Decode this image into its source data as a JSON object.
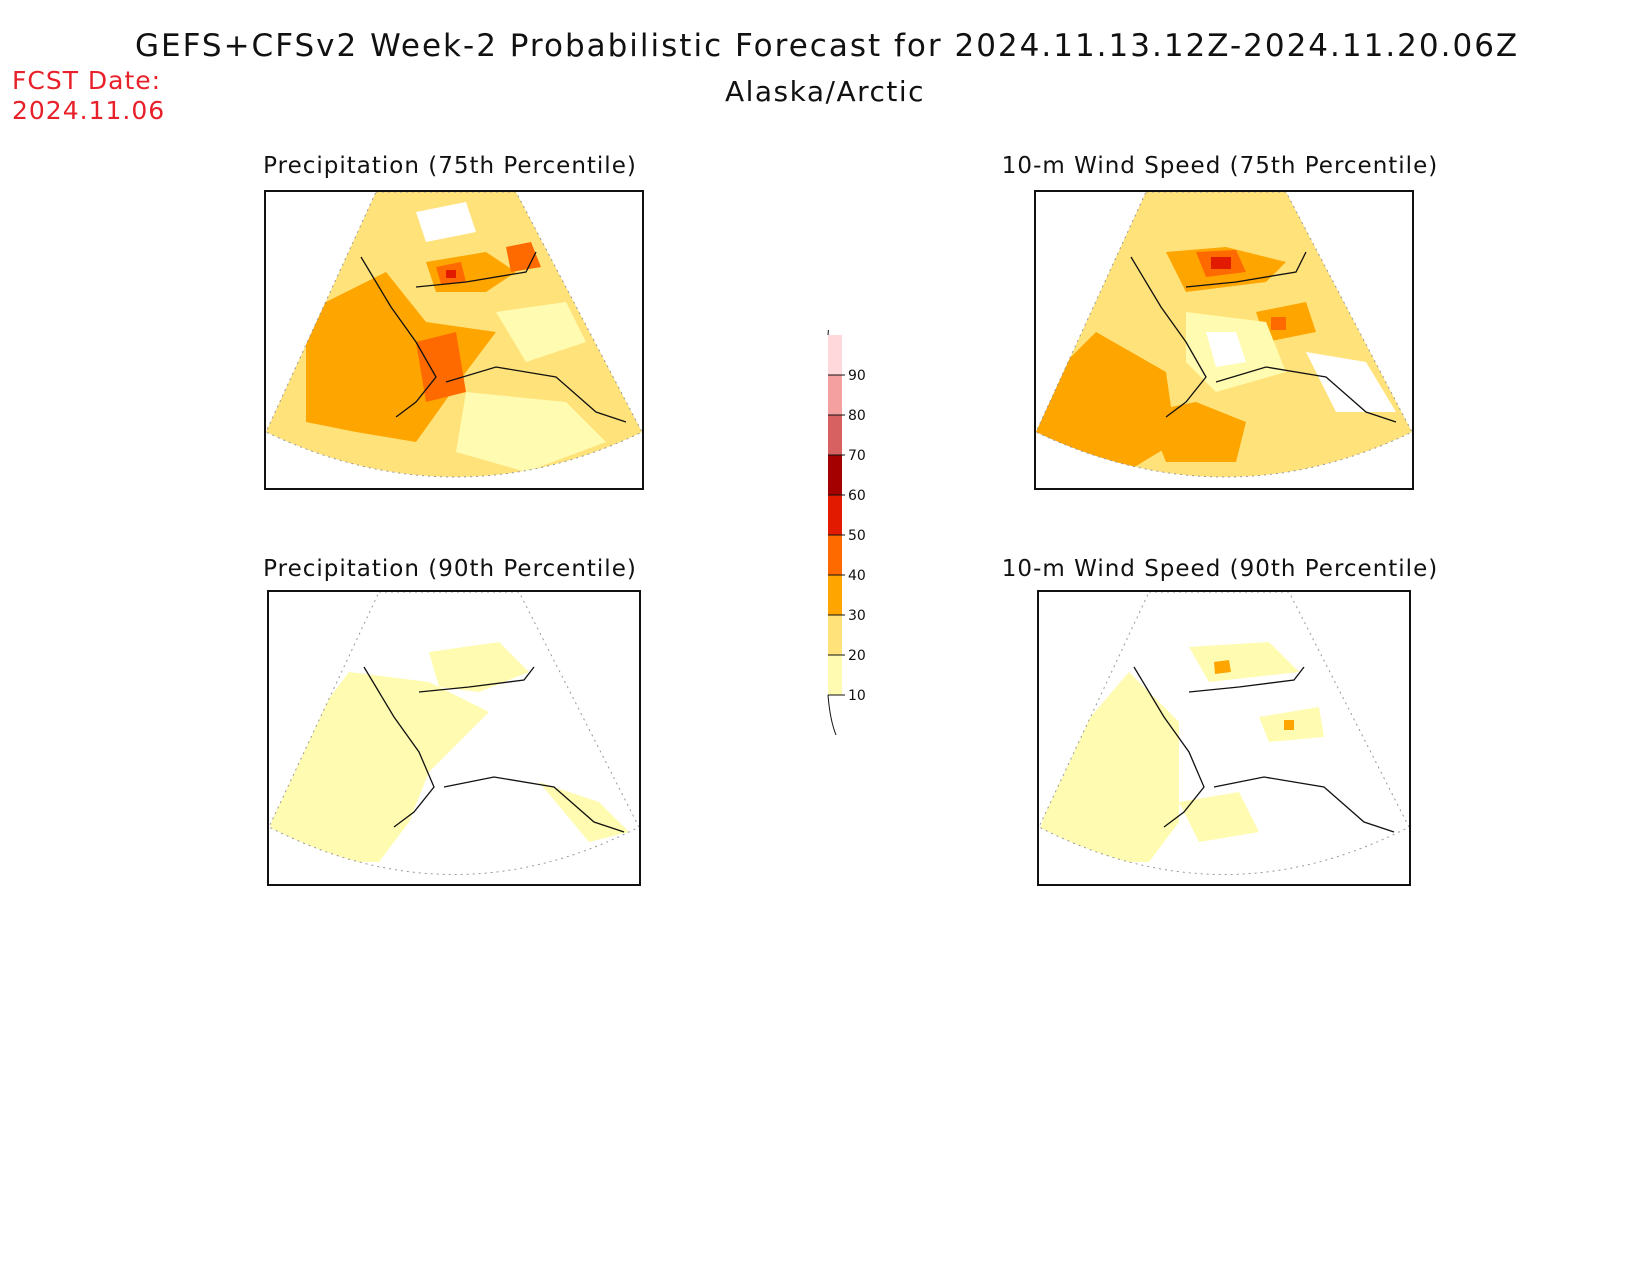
{
  "header": {
    "title": "GEFS+CFSv2 Week-2 Probabilistic Forecast for 2024.11.13.12Z-2024.11.20.06Z",
    "region": "Alaska/Arctic",
    "fcst_label": "FCST Date:",
    "fcst_date": "2024.11.06"
  },
  "panels": [
    {
      "id": "precip-75",
      "title": "Precipitation (75th Percentile)"
    },
    {
      "id": "wind-75",
      "title": "10-m Wind Speed (75th Percentile)"
    },
    {
      "id": "precip-90",
      "title": "Precipitation (90th Percentile)"
    },
    {
      "id": "wind-90",
      "title": "10-m Wind Speed (90th Percentile)"
    }
  ],
  "colorbar": {
    "levels": [
      "10",
      "20",
      "30",
      "40",
      "50",
      "60",
      "70",
      "80",
      "90"
    ],
    "colors": [
      "#fffbb0",
      "#ffe27a",
      "#ffa500",
      "#ff6a00",
      "#e21a00",
      "#a40000",
      "#d76060",
      "#f4a0a0",
      "#ffd8dc"
    ]
  }
}
